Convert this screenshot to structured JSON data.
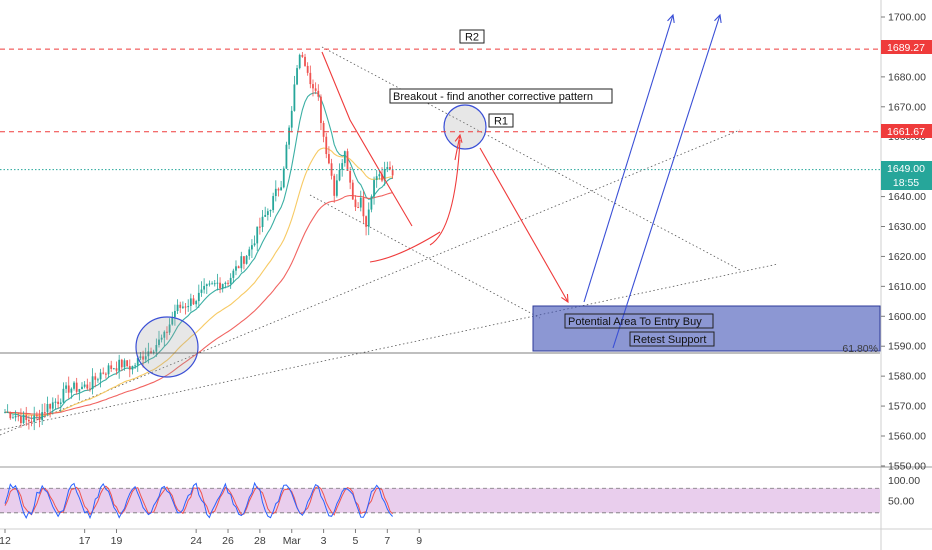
{
  "colors": {
    "up": "#26a69a",
    "down": "#ef5350",
    "ema_short": "#26a69a",
    "ema_mid": "#f6c453",
    "ema_long": "#ef5350",
    "resistance": "#ef3b3b",
    "current": "#26a69a",
    "rsi_line": "#2962ff",
    "rsi_signal": "#ef5350",
    "rsi_band": "#e1bee7",
    "zone": "#3f51b5",
    "arrow_blue": "#3a4fd6",
    "arrow_red": "#ef3b3b"
  },
  "chart_data": {
    "type": "candlestick",
    "symbol_hint": "ETH-like futures",
    "x_ticks": [
      "12",
      "17",
      "19",
      "24",
      "26",
      "28",
      "Mar",
      "3",
      "5",
      "7",
      "9"
    ],
    "price_ticks": [
      1700,
      1690,
      1680,
      1670,
      1660,
      1650,
      1640,
      1630,
      1620,
      1610,
      1600,
      1590,
      1580,
      1570,
      1560,
      1550
    ],
    "price_labels": {
      "1700": "1700.00",
      "1690": "1690.00",
      "1680": "1680.00",
      "1670": "1670.00",
      "1660": "1660.00",
      "1650": "1650.00",
      "1640": "1640.00",
      "1630": "1630.00",
      "1620": "1620.00",
      "1610": "1610.00",
      "1600": "1600.00",
      "1590": "1590.00",
      "1580": "1580.00",
      "1570": "1570.00",
      "1560": "1560.00",
      "1550": "1550.00"
    },
    "ylim": [
      1550,
      1702
    ],
    "levels": [
      {
        "name": "R2",
        "value": 1689.27,
        "label": "1689.27"
      },
      {
        "name": "R1",
        "value": 1661.67,
        "label": "1661.67"
      }
    ],
    "current_price": {
      "value": 1649.0,
      "label": "1649.00",
      "countdown": "18:55"
    },
    "fib_level": {
      "value": 1587.5,
      "label": "61.80%"
    },
    "close_path": [
      [
        0,
        1568
      ],
      [
        4,
        1567
      ],
      [
        8,
        1565
      ],
      [
        12,
        1566
      ],
      [
        16,
        1570
      ],
      [
        20,
        1572
      ],
      [
        24,
        1576
      ],
      [
        28,
        1576
      ],
      [
        32,
        1577
      ],
      [
        36,
        1581
      ],
      [
        40,
        1583
      ],
      [
        44,
        1584
      ],
      [
        48,
        1583
      ],
      [
        52,
        1587
      ],
      [
        56,
        1590
      ],
      [
        60,
        1593
      ],
      [
        64,
        1602
      ],
      [
        68,
        1604
      ],
      [
        72,
        1606
      ],
      [
        76,
        1609
      ],
      [
        80,
        1611
      ],
      [
        84,
        1612
      ],
      [
        88,
        1617
      ],
      [
        92,
        1622
      ],
      [
        96,
        1630
      ],
      [
        100,
        1637
      ],
      [
        104,
        1645
      ],
      [
        108,
        1668
      ],
      [
        110,
        1684
      ],
      [
        112,
        1688
      ],
      [
        114,
        1683
      ],
      [
        116,
        1676
      ],
      [
        118,
        1672
      ],
      [
        120,
        1660
      ],
      [
        122,
        1652
      ],
      [
        124,
        1642
      ],
      [
        126,
        1650
      ],
      [
        128,
        1654
      ],
      [
        130,
        1646
      ],
      [
        132,
        1636
      ],
      [
        134,
        1640
      ],
      [
        136,
        1630
      ],
      [
        138,
        1642
      ],
      [
        140,
        1647
      ],
      [
        142,
        1646
      ],
      [
        144,
        1649
      ],
      [
        146,
        1648
      ]
    ],
    "x_tick_index": {
      "12": 0,
      "17": 30,
      "19": 42,
      "24": 72,
      "26": 84,
      "28": 96,
      "Mar": 108,
      "3": 120,
      "5": 132,
      "7": 144,
      "9": 156
    },
    "rsi": {
      "ticks": [
        "100.00",
        "50.00"
      ],
      "ylim": [
        0,
        110
      ],
      "upper": 80,
      "lower": 20
    }
  },
  "annotations": {
    "r2": "R2",
    "r1": "R1",
    "breakout": "Breakout - find another corrective pattern",
    "entry": "Potential Area To Entry Buy",
    "retest": "Retest Support"
  }
}
